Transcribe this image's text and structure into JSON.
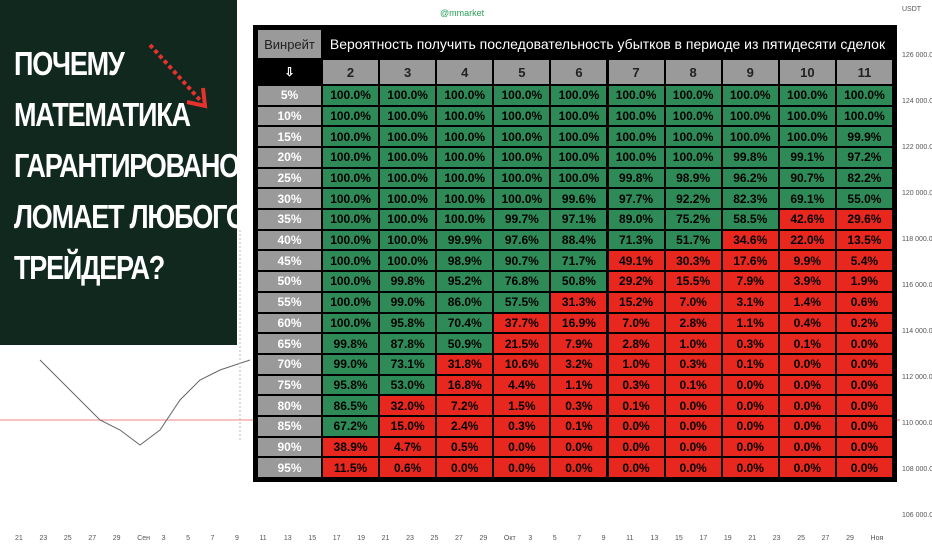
{
  "headline": [
    "ПОЧЕМУ",
    "МАТЕМАТИКА",
    "ГАРАНТИРОВАНО",
    "ЛОМАЕТ ЛЮБОГО",
    "ТРЕЙДЕРА?"
  ],
  "watermark": "@mmarket",
  "table": {
    "corner": "Винрейт",
    "title": "Вероятность получить последовательность убытков в периоде из пятидесяти сделок",
    "arrow": "⇩",
    "columns": [
      "2",
      "3",
      "4",
      "5",
      "6",
      "7",
      "8",
      "9",
      "10",
      "11"
    ],
    "palette": {
      "green": "#2e8b57",
      "red": "#e8281f"
    },
    "rows": [
      {
        "label": "5%",
        "cells": [
          "100.0%",
          "100.0%",
          "100.0%",
          "100.0%",
          "100.0%",
          "100.0%",
          "100.0%",
          "100.0%",
          "100.0%",
          "100.0%"
        ],
        "fills": [
          "green",
          "green",
          "green",
          "green",
          "green",
          "green",
          "green",
          "green",
          "green",
          "green"
        ]
      },
      {
        "label": "10%",
        "cells": [
          "100.0%",
          "100.0%",
          "100.0%",
          "100.0%",
          "100.0%",
          "100.0%",
          "100.0%",
          "100.0%",
          "100.0%",
          "100.0%"
        ],
        "fills": [
          "green",
          "green",
          "green",
          "green",
          "green",
          "green",
          "green",
          "green",
          "green",
          "green"
        ]
      },
      {
        "label": "15%",
        "cells": [
          "100.0%",
          "100.0%",
          "100.0%",
          "100.0%",
          "100.0%",
          "100.0%",
          "100.0%",
          "100.0%",
          "100.0%",
          "99.9%"
        ],
        "fills": [
          "green",
          "green",
          "green",
          "green",
          "green",
          "green",
          "green",
          "green",
          "green",
          "green"
        ]
      },
      {
        "label": "20%",
        "cells": [
          "100.0%",
          "100.0%",
          "100.0%",
          "100.0%",
          "100.0%",
          "100.0%",
          "100.0%",
          "99.8%",
          "99.1%",
          "97.2%"
        ],
        "fills": [
          "green",
          "green",
          "green",
          "green",
          "green",
          "green",
          "green",
          "green",
          "green",
          "green"
        ]
      },
      {
        "label": "25%",
        "cells": [
          "100.0%",
          "100.0%",
          "100.0%",
          "100.0%",
          "100.0%",
          "99.8%",
          "98.9%",
          "96.2%",
          "90.7%",
          "82.2%"
        ],
        "fills": [
          "green",
          "green",
          "green",
          "green",
          "green",
          "green",
          "green",
          "green",
          "green",
          "green"
        ]
      },
      {
        "label": "30%",
        "cells": [
          "100.0%",
          "100.0%",
          "100.0%",
          "100.0%",
          "99.6%",
          "97.7%",
          "92.2%",
          "82.3%",
          "69.1%",
          "55.0%"
        ],
        "fills": [
          "green",
          "green",
          "green",
          "green",
          "green",
          "green",
          "green",
          "green",
          "green",
          "green"
        ]
      },
      {
        "label": "35%",
        "cells": [
          "100.0%",
          "100.0%",
          "100.0%",
          "99.7%",
          "97.1%",
          "89.0%",
          "75.2%",
          "58.5%",
          "42.6%",
          "29.6%"
        ],
        "fills": [
          "green",
          "green",
          "green",
          "green",
          "green",
          "green",
          "green",
          "green",
          "red",
          "red"
        ]
      },
      {
        "label": "40%",
        "cells": [
          "100.0%",
          "100.0%",
          "99.9%",
          "97.6%",
          "88.4%",
          "71.3%",
          "51.7%",
          "34.6%",
          "22.0%",
          "13.5%"
        ],
        "fills": [
          "green",
          "green",
          "green",
          "green",
          "green",
          "green",
          "green",
          "red",
          "red",
          "red"
        ]
      },
      {
        "label": "45%",
        "cells": [
          "100.0%",
          "100.0%",
          "98.9%",
          "90.7%",
          "71.7%",
          "49.1%",
          "30.3%",
          "17.6%",
          "9.9%",
          "5.4%"
        ],
        "fills": [
          "green",
          "green",
          "green",
          "green",
          "green",
          "red",
          "red",
          "red",
          "red",
          "red"
        ]
      },
      {
        "label": "50%",
        "cells": [
          "100.0%",
          "99.8%",
          "95.2%",
          "76.8%",
          "50.8%",
          "29.2%",
          "15.5%",
          "7.9%",
          "3.9%",
          "1.9%"
        ],
        "fills": [
          "green",
          "green",
          "green",
          "green",
          "green",
          "red",
          "red",
          "red",
          "red",
          "red"
        ]
      },
      {
        "label": "55%",
        "cells": [
          "100.0%",
          "99.0%",
          "86.0%",
          "57.5%",
          "31.3%",
          "15.2%",
          "7.0%",
          "3.1%",
          "1.4%",
          "0.6%"
        ],
        "fills": [
          "green",
          "green",
          "green",
          "green",
          "red",
          "red",
          "red",
          "red",
          "red",
          "red"
        ]
      },
      {
        "label": "60%",
        "cells": [
          "100.0%",
          "95.8%",
          "70.4%",
          "37.7%",
          "16.9%",
          "7.0%",
          "2.8%",
          "1.1%",
          "0.4%",
          "0.2%"
        ],
        "fills": [
          "green",
          "green",
          "green",
          "red",
          "red",
          "red",
          "red",
          "red",
          "red",
          "red"
        ]
      },
      {
        "label": "65%",
        "cells": [
          "99.8%",
          "87.8%",
          "50.9%",
          "21.5%",
          "7.9%",
          "2.8%",
          "1.0%",
          "0.3%",
          "0.1%",
          "0.0%"
        ],
        "fills": [
          "green",
          "green",
          "green",
          "red",
          "red",
          "red",
          "red",
          "red",
          "red",
          "red"
        ]
      },
      {
        "label": "70%",
        "cells": [
          "99.0%",
          "73.1%",
          "31.8%",
          "10.6%",
          "3.2%",
          "1.0%",
          "0.3%",
          "0.1%",
          "0.0%",
          "0.0%"
        ],
        "fills": [
          "green",
          "green",
          "red",
          "red",
          "red",
          "red",
          "red",
          "red",
          "red",
          "red"
        ]
      },
      {
        "label": "75%",
        "cells": [
          "95.8%",
          "53.0%",
          "16.8%",
          "4.4%",
          "1.1%",
          "0.3%",
          "0.1%",
          "0.0%",
          "0.0%",
          "0.0%"
        ],
        "fills": [
          "green",
          "green",
          "red",
          "red",
          "red",
          "red",
          "red",
          "red",
          "red",
          "red"
        ]
      },
      {
        "label": "80%",
        "cells": [
          "86.5%",
          "32.0%",
          "7.2%",
          "1.5%",
          "0.3%",
          "0.1%",
          "0.0%",
          "0.0%",
          "0.0%",
          "0.0%"
        ],
        "fills": [
          "green",
          "red",
          "red",
          "red",
          "red",
          "red",
          "red",
          "red",
          "red",
          "red"
        ]
      },
      {
        "label": "85%",
        "cells": [
          "67.2%",
          "15.0%",
          "2.4%",
          "0.3%",
          "0.1%",
          "0.0%",
          "0.0%",
          "0.0%",
          "0.0%",
          "0.0%"
        ],
        "fills": [
          "green",
          "red",
          "red",
          "red",
          "red",
          "red",
          "red",
          "red",
          "red",
          "red"
        ]
      },
      {
        "label": "90%",
        "cells": [
          "38.9%",
          "4.7%",
          "0.5%",
          "0.0%",
          "0.0%",
          "0.0%",
          "0.0%",
          "0.0%",
          "0.0%",
          "0.0%"
        ],
        "fills": [
          "red",
          "red",
          "red",
          "red",
          "red",
          "red",
          "red",
          "red",
          "red",
          "red"
        ]
      },
      {
        "label": "95%",
        "cells": [
          "11.5%",
          "0.6%",
          "0.0%",
          "0.0%",
          "0.0%",
          "0.0%",
          "0.0%",
          "0.0%",
          "0.0%",
          "0.0%"
        ],
        "fills": [
          "red",
          "red",
          "red",
          "red",
          "red",
          "red",
          "red",
          "red",
          "red",
          "red"
        ]
      }
    ]
  },
  "price_axis": [
    "USDT",
    "126 000.0",
    "124 000.0",
    "122 000.0",
    "120 000.0",
    "118 000.0",
    "116 000.0",
    "114 000.0",
    "112 000.0",
    "110 000.0",
    "108 000.0",
    "106 000.0"
  ],
  "date_axis": [
    "21",
    "23",
    "25",
    "27",
    "29",
    "Сен",
    "3",
    "5",
    "7",
    "9",
    "11",
    "13",
    "15",
    "17",
    "19",
    "21",
    "23",
    "25",
    "27",
    "29",
    "Окт",
    "3",
    "5",
    "7",
    "9",
    "11",
    "13",
    "15",
    "17",
    "19",
    "21",
    "23",
    "25",
    "27",
    "29",
    "Ноя"
  ]
}
